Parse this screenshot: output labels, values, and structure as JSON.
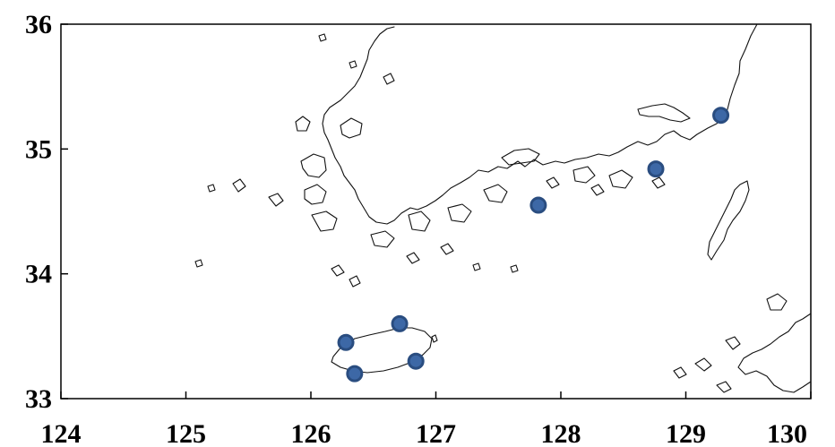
{
  "map": {
    "x_ticks": [
      "124",
      "125",
      "126",
      "127",
      "128",
      "129",
      "130"
    ],
    "y_ticks": [
      "36",
      "35",
      "34",
      "33"
    ],
    "x_range": [
      124,
      130
    ],
    "y_range": [
      33,
      36
    ],
    "station_color": "#3d68a6",
    "stations": [
      {
        "lon": 129.28,
        "lat": 35.27
      },
      {
        "lon": 128.76,
        "lat": 34.84
      },
      {
        "lon": 127.82,
        "lat": 34.55
      },
      {
        "lon": 126.71,
        "lat": 33.6
      },
      {
        "lon": 126.28,
        "lat": 33.45
      },
      {
        "lon": 126.84,
        "lat": 33.3
      },
      {
        "lon": 126.35,
        "lat": 33.2
      }
    ]
  }
}
